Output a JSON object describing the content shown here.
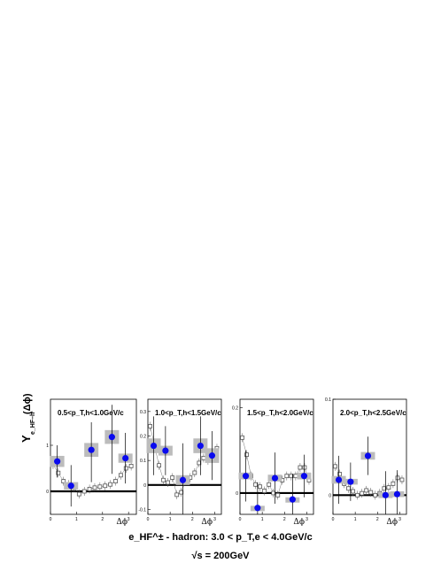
{
  "figure": {
    "y_axis_label": "Y",
    "y_axis_sub": "e_HF–h",
    "y_axis_arg": "(Δϕ)",
    "footer_line1": "e_HF^± - hadron: 3.0 < p_T,e < 4.0GeV/c",
    "footer_line2": "√s = 200GeV"
  },
  "colors": {
    "data_point": "#0a0aee",
    "syst_box": "#bcbcbc",
    "ref_marker": "#555555",
    "zero_line": "#000000"
  },
  "chart_data": [
    {
      "type": "scatter",
      "title": "0.5<p_T,h<1.0GeV/c",
      "xlabel": "Δϕ",
      "xlim": [
        0,
        3.3
      ],
      "ylim": [
        -0.5,
        2.0
      ],
      "yticks": [
        {
          "v": 0,
          "label": "0"
        },
        {
          "v": 1,
          "label": "1"
        }
      ],
      "xticks": [
        0,
        1,
        2,
        3
      ],
      "grid": false,
      "points": [
        {
          "x": 0.26,
          "y": 0.65,
          "err_lo": 0.35,
          "err_hi": 0.35
        },
        {
          "x": 0.79,
          "y": 0.12,
          "err_lo": 0.45,
          "err_hi": 0.45
        },
        {
          "x": 1.57,
          "y": 0.9,
          "err_lo": 0.7,
          "err_hi": 0.6
        },
        {
          "x": 2.36,
          "y": 1.18,
          "err_lo": 0.8,
          "err_hi": 0.7
        },
        {
          "x": 2.88,
          "y": 0.72,
          "err_lo": 0.55,
          "err_hi": 0.55
        }
      ],
      "syst": [
        0.12,
        0.08,
        0.15,
        0.15,
        0.1
      ],
      "reference": [
        {
          "x": 0.1,
          "y": 0.58
        },
        {
          "x": 0.3,
          "y": 0.4
        },
        {
          "x": 0.5,
          "y": 0.22
        },
        {
          "x": 0.7,
          "y": 0.15
        },
        {
          "x": 0.9,
          "y": 0.08
        },
        {
          "x": 1.1,
          "y": -0.06
        },
        {
          "x": 1.3,
          "y": 0.0
        },
        {
          "x": 1.5,
          "y": 0.05
        },
        {
          "x": 1.7,
          "y": 0.08
        },
        {
          "x": 1.9,
          "y": 0.1
        },
        {
          "x": 2.1,
          "y": 0.12
        },
        {
          "x": 2.3,
          "y": 0.15
        },
        {
          "x": 2.5,
          "y": 0.22
        },
        {
          "x": 2.7,
          "y": 0.35
        },
        {
          "x": 2.9,
          "y": 0.5
        },
        {
          "x": 3.1,
          "y": 0.55
        }
      ]
    },
    {
      "type": "scatter",
      "title": "1.0<p_T,h<1.5GeV/c",
      "xlabel": "Δϕ",
      "xlim": [
        0,
        3.3
      ],
      "ylim": [
        -0.12,
        0.35
      ],
      "yticks": [
        {
          "v": -0.1,
          "label": "-0.1"
        },
        {
          "v": 0,
          "label": "0"
        },
        {
          "v": 0.1,
          "label": "0.1"
        },
        {
          "v": 0.2,
          "label": "0.2"
        },
        {
          "v": 0.3,
          "label": "0.3"
        }
      ],
      "xticks": [
        0,
        1,
        2,
        3
      ],
      "grid": false,
      "points": [
        {
          "x": 0.26,
          "y": 0.16,
          "err_lo": 0.12,
          "err_hi": 0.12
        },
        {
          "x": 0.79,
          "y": 0.14,
          "err_lo": 0.1,
          "err_hi": 0.1
        },
        {
          "x": 1.57,
          "y": 0.02,
          "err_lo": 0.15,
          "err_hi": 0.15
        },
        {
          "x": 2.36,
          "y": 0.16,
          "err_lo": 0.12,
          "err_hi": 0.12
        },
        {
          "x": 2.88,
          "y": 0.12,
          "err_lo": 0.1,
          "err_hi": 0.1
        }
      ],
      "syst": [
        0.03,
        0.02,
        0.02,
        0.03,
        0.03
      ],
      "reference": [
        {
          "x": 0.1,
          "y": 0.24
        },
        {
          "x": 0.3,
          "y": 0.16
        },
        {
          "x": 0.5,
          "y": 0.08
        },
        {
          "x": 0.7,
          "y": 0.02
        },
        {
          "x": 0.9,
          "y": 0.01
        },
        {
          "x": 1.1,
          "y": 0.03
        },
        {
          "x": 1.3,
          "y": -0.04
        },
        {
          "x": 1.5,
          "y": -0.03
        },
        {
          "x": 1.7,
          "y": 0.02
        },
        {
          "x": 1.9,
          "y": 0.03
        },
        {
          "x": 2.1,
          "y": 0.05
        },
        {
          "x": 2.3,
          "y": 0.09
        },
        {
          "x": 2.5,
          "y": 0.11
        },
        {
          "x": 2.7,
          "y": 0.1
        },
        {
          "x": 2.9,
          "y": 0.13
        },
        {
          "x": 3.1,
          "y": 0.15
        }
      ]
    },
    {
      "type": "scatter",
      "title": "1.5<p_T,h<2.0GeV/c",
      "xlabel": "Δϕ",
      "xlim": [
        0,
        3.3
      ],
      "ylim": [
        -0.05,
        0.22
      ],
      "yticks": [
        {
          "v": 0,
          "label": "0"
        },
        {
          "v": 0.2,
          "label": "0.2"
        }
      ],
      "xticks": [
        0,
        1,
        2,
        3
      ],
      "grid": false,
      "points": [
        {
          "x": 0.26,
          "y": 0.04,
          "err_lo": 0.06,
          "err_hi": 0.06
        },
        {
          "x": 0.79,
          "y": -0.035,
          "err_lo": 0.06,
          "err_hi": 0.06
        },
        {
          "x": 1.57,
          "y": 0.035,
          "err_lo": 0.06,
          "err_hi": 0.06
        },
        {
          "x": 2.36,
          "y": -0.015,
          "err_lo": 0.06,
          "err_hi": 0.06
        },
        {
          "x": 2.88,
          "y": 0.04,
          "err_lo": 0.05,
          "err_hi": 0.05
        }
      ],
      "syst": [
        0.008,
        0.005,
        0.008,
        0.005,
        0.008
      ],
      "reference": [
        {
          "x": 0.1,
          "y": 0.13
        },
        {
          "x": 0.3,
          "y": 0.09
        },
        {
          "x": 0.5,
          "y": 0.04
        },
        {
          "x": 0.7,
          "y": 0.02
        },
        {
          "x": 0.9,
          "y": 0.015
        },
        {
          "x": 1.1,
          "y": 0.005
        },
        {
          "x": 1.3,
          "y": 0.02
        },
        {
          "x": 1.5,
          "y": 0.0
        },
        {
          "x": 1.7,
          "y": -0.005
        },
        {
          "x": 1.9,
          "y": 0.03
        },
        {
          "x": 2.1,
          "y": 0.04
        },
        {
          "x": 2.3,
          "y": 0.04
        },
        {
          "x": 2.5,
          "y": 0.04
        },
        {
          "x": 2.7,
          "y": 0.06
        },
        {
          "x": 2.9,
          "y": 0.06
        },
        {
          "x": 3.1,
          "y": 0.03
        }
      ]
    },
    {
      "type": "scatter",
      "title": "2.0<p_T,h<2.5GeV/c",
      "xlabel": "Δϕ",
      "xlim": [
        0,
        3.3
      ],
      "ylim": [
        -0.02,
        0.1
      ],
      "yticks": [
        {
          "v": 0,
          "label": "0"
        },
        {
          "v": 0.1,
          "label": "0.1"
        }
      ],
      "xticks": [
        0,
        1,
        2,
        3
      ],
      "grid": false,
      "points": [
        {
          "x": 0.26,
          "y": 0.016,
          "err_lo": 0.025,
          "err_hi": 0.025
        },
        {
          "x": 0.79,
          "y": 0.014,
          "err_lo": 0.02,
          "err_hi": 0.02
        },
        {
          "x": 1.57,
          "y": 0.041,
          "err_lo": 0.02,
          "err_hi": 0.02
        },
        {
          "x": 2.36,
          "y": 0.0,
          "err_lo": 0.025,
          "err_hi": 0.025
        },
        {
          "x": 2.88,
          "y": 0.001,
          "err_lo": 0.025,
          "err_hi": 0.025
        }
      ],
      "syst": [
        0.004,
        0.003,
        0.004,
        0.003,
        0.003
      ],
      "reference": [
        {
          "x": 0.1,
          "y": 0.03
        },
        {
          "x": 0.3,
          "y": 0.022
        },
        {
          "x": 0.5,
          "y": 0.012
        },
        {
          "x": 0.7,
          "y": 0.007
        },
        {
          "x": 0.9,
          "y": 0.004
        },
        {
          "x": 1.1,
          "y": 0.0
        },
        {
          "x": 1.3,
          "y": 0.002
        },
        {
          "x": 1.5,
          "y": 0.005
        },
        {
          "x": 1.7,
          "y": 0.003
        },
        {
          "x": 1.9,
          "y": 0.0
        },
        {
          "x": 2.1,
          "y": 0.002
        },
        {
          "x": 2.3,
          "y": 0.007
        },
        {
          "x": 2.5,
          "y": 0.008
        },
        {
          "x": 2.7,
          "y": 0.012
        },
        {
          "x": 2.9,
          "y": 0.018
        },
        {
          "x": 3.1,
          "y": 0.016
        }
      ]
    }
  ]
}
